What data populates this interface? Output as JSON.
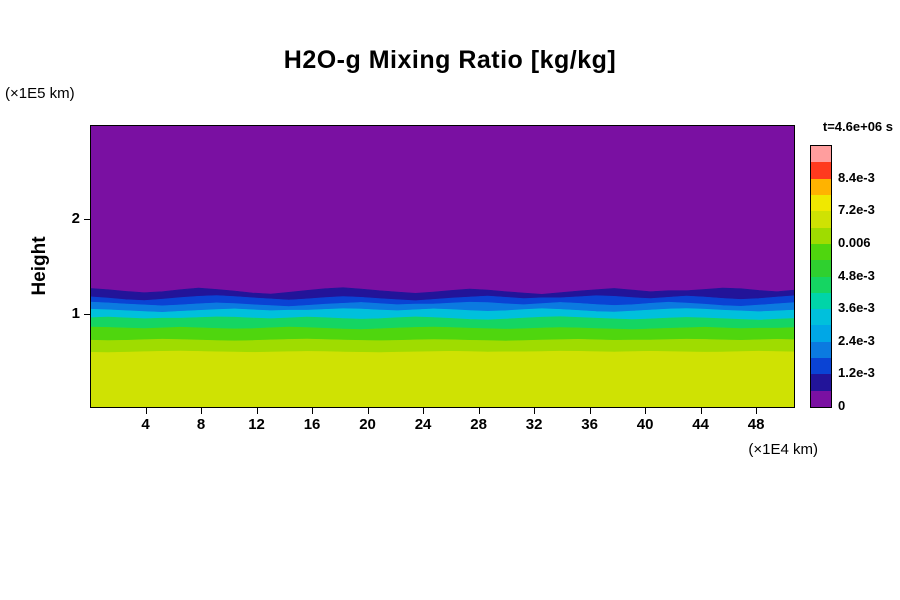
{
  "figure": {
    "title": "H2O-g Mixing Ratio [kg/kg]",
    "y_axis_name": "Height",
    "y_axis_units": "(×1E5 km)",
    "x_axis_units": "(×1E4 km)",
    "time_annotation": "t=4.6e+06 s"
  },
  "chart_data": {
    "type": "heatmap",
    "title": "H2O-g Mixing Ratio [kg/kg]",
    "units": "kg/kg",
    "time_annotation": "t=4.6e+06 s",
    "xlabel": "(×1E4 km)",
    "ylabel": "Height (×1E5 km)",
    "xlim": [
      0,
      50.8
    ],
    "ylim": [
      0,
      3.0
    ],
    "x_ticks": [
      4,
      8,
      12,
      16,
      20,
      24,
      28,
      32,
      36,
      40,
      44,
      48
    ],
    "y_ticks": [
      1,
      2
    ],
    "grid": false,
    "colorbar_position": "right",
    "description": "Horizontally stratified filled-contour field: mixing ratio ≈6e-3 kg/kg near the surface, decreasing with height through green/cyan/blue bands between heights ~0.6 and ~1.25 (×1E5 km), and ≈0 (purple) above a wavy interface near height 1.25 up to the top of the domain (~3.0).",
    "bands": [
      {
        "range": "≈0 (< 0.6e-3)",
        "color": "#7a10a2",
        "top": 3.0,
        "amp": 0
      },
      {
        "range": "0.6e-3 – 1.2e-3",
        "color": "#221499",
        "top": 1.24,
        "amp": 0.035
      },
      {
        "range": "1.2e-3 – 1.8e-3",
        "color": "#0a43d4",
        "top": 1.165,
        "amp": 0.028
      },
      {
        "range": "1.8e-3 – 2.4e-3",
        "color": "#0b7ae0",
        "top": 1.1,
        "amp": 0.024
      },
      {
        "range": "2.4e-3 – 3.6e-3",
        "color": "#00c0dc",
        "top": 1.035,
        "amp": 0.02
      },
      {
        "range": "3.6e-3 – 4.8e-3",
        "color": "#15d562",
        "top": 0.95,
        "amp": 0.018
      },
      {
        "range": "4.8e-3 – 5.4e-3",
        "color": "#4fd60e",
        "top": 0.845,
        "amp": 0.014
      },
      {
        "range": "5.4e-3 – 6.0e-3",
        "color": "#9fdc00",
        "top": 0.72,
        "amp": 0.01
      },
      {
        "range": "≈6.0e-3 (surface layer)",
        "color": "#cfe203",
        "top": 0.595,
        "amp": 0.008
      }
    ],
    "wiggle": [
      0.1,
      0.5,
      0.9,
      0.7,
      0.2,
      -0.2,
      0.3,
      0.8,
      0.4,
      -0.1,
      -0.5,
      -0.2,
      0.4,
      0.9,
      0.5,
      0.0,
      -0.6,
      -0.9,
      -0.4,
      0.2,
      0.7,
      1.0,
      0.6,
      0.1,
      -0.3,
      -0.7,
      -0.3,
      0.2,
      0.6,
      0.3,
      -0.2,
      -0.6,
      -1.0,
      -0.5,
      0.0,
      0.4,
      0.8,
      0.3,
      -0.2,
      0.1
    ],
    "colorbar": {
      "min": 0,
      "max": 0.0096,
      "segment_step": 0.0006,
      "colors": [
        "#7a10a2",
        "#221499",
        "#0a43d4",
        "#0b7ae0",
        "#00a7e6",
        "#00c0dc",
        "#00d4a8",
        "#15d562",
        "#2fd02f",
        "#4fd60e",
        "#9fdc00",
        "#cfe203",
        "#f0e800",
        "#ffb300",
        "#ff3a1e",
        "#ff9e9e"
      ],
      "labels": [
        {
          "text": "8.4e-3",
          "value": 0.0084
        },
        {
          "text": "7.2e-3",
          "value": 0.0072
        },
        {
          "text": "0.006",
          "value": 0.006
        },
        {
          "text": "4.8e-3",
          "value": 0.0048
        },
        {
          "text": "3.6e-3",
          "value": 0.0036
        },
        {
          "text": "2.4e-3",
          "value": 0.0024
        },
        {
          "text": "1.2e-3",
          "value": 0.0012
        },
        {
          "text": "0",
          "value": 0
        }
      ]
    }
  }
}
